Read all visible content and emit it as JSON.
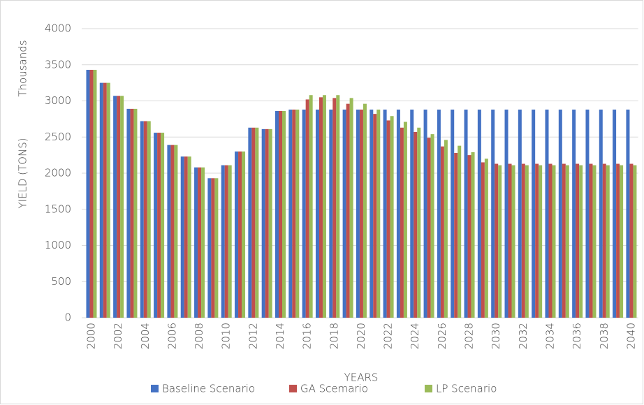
{
  "chart_data": {
    "type": "bar",
    "y_axis_title": "YIELD (TONS)",
    "y_unit_label": "Thousands",
    "x_axis_title": "YEARS",
    "categories": [
      "2000",
      null,
      "2002",
      null,
      "2004",
      null,
      "2006",
      null,
      "2008",
      null,
      "2010",
      null,
      "2012",
      null,
      "2014",
      null,
      "2016",
      null,
      "2018",
      null,
      "2020",
      null,
      "2022",
      null,
      "2024",
      null,
      "2026",
      null,
      "2028",
      null,
      "2030",
      null,
      "2032",
      null,
      "2034",
      null,
      "2036",
      null,
      "2038",
      null,
      "2040"
    ],
    "series": [
      {
        "name": "Baseline Scenario",
        "color": "#4472c4",
        "values": [
          3430,
          3250,
          3070,
          2890,
          2720,
          2560,
          2390,
          2230,
          2080,
          1930,
          2110,
          2300,
          2630,
          2610,
          2860,
          2880,
          2880,
          2880,
          2880,
          2880,
          2880,
          2880,
          2880,
          2880,
          2880,
          2880,
          2880,
          2880,
          2880,
          2880,
          2880,
          2880,
          2880,
          2880,
          2880,
          2880,
          2880,
          2880,
          2880,
          2880,
          2880
        ]
      },
      {
        "name": "GA Scemario",
        "color": "#c0504d",
        "values": [
          3430,
          3250,
          3070,
          2890,
          2720,
          2560,
          2390,
          2230,
          2080,
          1930,
          2110,
          2300,
          2630,
          2610,
          2860,
          2880,
          3020,
          3050,
          3040,
          2960,
          2880,
          2820,
          2730,
          2630,
          2570,
          2490,
          2370,
          2280,
          2250,
          2150,
          2130,
          2130,
          2130,
          2130,
          2130,
          2130,
          2130,
          2130,
          2130,
          2130,
          2130
        ]
      },
      {
        "name": "LP Scenario",
        "color": "#9bbb59",
        "values": [
          3430,
          3250,
          3070,
          2890,
          2720,
          2560,
          2390,
          2230,
          2080,
          1930,
          2110,
          2300,
          2630,
          2610,
          2860,
          2880,
          3080,
          3080,
          3080,
          3040,
          2960,
          2880,
          2790,
          2710,
          2630,
          2540,
          2460,
          2380,
          2290,
          2200,
          2110,
          2110,
          2110,
          2110,
          2110,
          2110,
          2110,
          2110,
          2110,
          2110,
          2110
        ]
      }
    ],
    "ylim": [
      0,
      4000
    ],
    "yticks": [
      0,
      500,
      1000,
      1500,
      2000,
      2500,
      3000,
      3500,
      4000
    ],
    "grid": true,
    "legend": "bottom"
  }
}
